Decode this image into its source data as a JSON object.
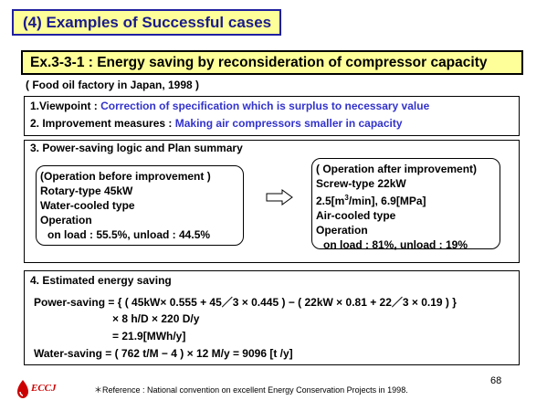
{
  "section_title": "(4) Examples of Successful cases",
  "example_title": "Ex.3-3-1 : Energy saving by reconsideration of compressor capacity",
  "subtitle": "( Food oil factory in Japan, 1998 )",
  "box1": {
    "viewpoint_label": "1.Viewpoint :",
    "viewpoint_text": "Correction of specification which is surplus to necessary value",
    "improvement_label": "2. Improvement measures :",
    "improvement_text": "Making air compressors smaller in capacity"
  },
  "box2": {
    "header": "3. Power-saving logic and Plan summary",
    "before": {
      "title": "(Operation before improvement )",
      "type": "Rotary-type 45kW",
      "cooling": "Water-cooled type",
      "operation": "Operation",
      "load": "on load : 55.5%, unload : 44.5%"
    },
    "after": {
      "title": "( Operation after improvement)",
      "type": "Screw-type 22kW",
      "spec_prefix": "2.5[m",
      "spec_sup": "3",
      "spec_suffix": "/min], 6.9[MPa]",
      "cooling": "Air-cooled type",
      "operation": "Operation",
      "load": "on load : 81%, unload : 19%"
    }
  },
  "box3": {
    "header": "4. Estimated energy saving",
    "power_line1": "Power-saving = { ( 45kW× 0.555 + 45／3 × 0.445 ) − ( 22kW × 0.81 + 22／3 × 0.19 ) }",
    "power_line2": "× 8 h/D × 220 D/y",
    "power_line3": "= 21.9[MWh/y]",
    "water_line": "Water-saving = ( 762 t/M − 4 ) × 12 M/y = 9096 [t /y]"
  },
  "footer": {
    "logo_text": "ECCJ",
    "reference": "＊Reference : National convention on excellent Energy Conservation Projects in 1998.",
    "page_number": "68"
  }
}
